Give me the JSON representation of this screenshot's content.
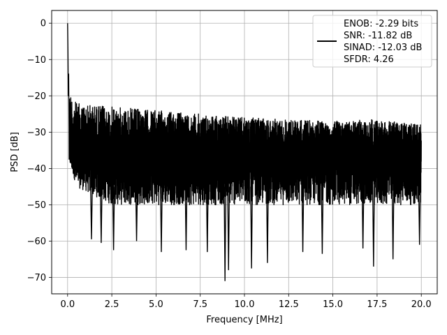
{
  "chart_data": {
    "type": "line",
    "title": "",
    "xlabel": "Frequency [MHz]",
    "ylabel": "PSD [dB]",
    "xlim": [
      -0.9,
      20.9
    ],
    "ylim": [
      -74.5,
      3.5
    ],
    "xticks": [
      0.0,
      2.5,
      5.0,
      7.5,
      10.0,
      12.5,
      15.0,
      17.5,
      20.0
    ],
    "xtick_labels": [
      "0.0",
      "2.5",
      "5.0",
      "7.5",
      "10.0",
      "12.5",
      "15.0",
      "17.5",
      "20.0"
    ],
    "yticks": [
      0,
      -10,
      -20,
      -30,
      -40,
      -50,
      -60,
      -70
    ],
    "ytick_labels": [
      "0",
      "−10",
      "−20",
      "−30",
      "−40",
      "−50",
      "−60",
      "−70"
    ],
    "grid": true,
    "legend_position": "top-right",
    "series": [
      {
        "name": "ENOB: -2.29 bits\nSNR: -11.82 dB\nSINAD: -12.03 dB\nSFDR: 4.26",
        "legend_lines": [
          "ENOB: -2.29 bits",
          "SNR: -11.82 dB",
          "SINAD: -12.03 dB",
          "SFDR: 4.26"
        ],
        "color": "#000000",
        "x_range": [
          0,
          20
        ],
        "dc_peak": 0,
        "noise_envelope_top": [
          [
            0.1,
            -18
          ],
          [
            0.5,
            -22
          ],
          [
            2.5,
            -23
          ],
          [
            5.0,
            -24
          ],
          [
            7.5,
            -25
          ],
          [
            10.0,
            -26
          ],
          [
            12.5,
            -26.5
          ],
          [
            15.0,
            -27
          ],
          [
            17.5,
            -26.5
          ],
          [
            20.0,
            -28
          ]
        ],
        "noise_envelope_bottom": [
          [
            0.1,
            -38
          ],
          [
            0.5,
            -45
          ],
          [
            2.5,
            -50
          ],
          [
            5.0,
            -50
          ],
          [
            7.5,
            -50
          ],
          [
            10.0,
            -50
          ],
          [
            12.5,
            -50
          ],
          [
            15.0,
            -50
          ],
          [
            17.5,
            -50
          ],
          [
            20.0,
            -50
          ]
        ],
        "noise_mean": -36,
        "deep_dips": [
          [
            1.35,
            -59.5
          ],
          [
            1.9,
            -60.5
          ],
          [
            2.6,
            -62.5
          ],
          [
            3.9,
            -60
          ],
          [
            5.3,
            -63
          ],
          [
            6.7,
            -62.5
          ],
          [
            7.9,
            -63
          ],
          [
            8.9,
            -71
          ],
          [
            9.1,
            -68
          ],
          [
            10.4,
            -67.5
          ],
          [
            11.3,
            -66
          ],
          [
            13.3,
            -63
          ],
          [
            14.4,
            -63.5
          ],
          [
            16.7,
            -62
          ],
          [
            17.3,
            -67
          ],
          [
            18.4,
            -65
          ],
          [
            19.9,
            -61
          ]
        ]
      }
    ]
  }
}
